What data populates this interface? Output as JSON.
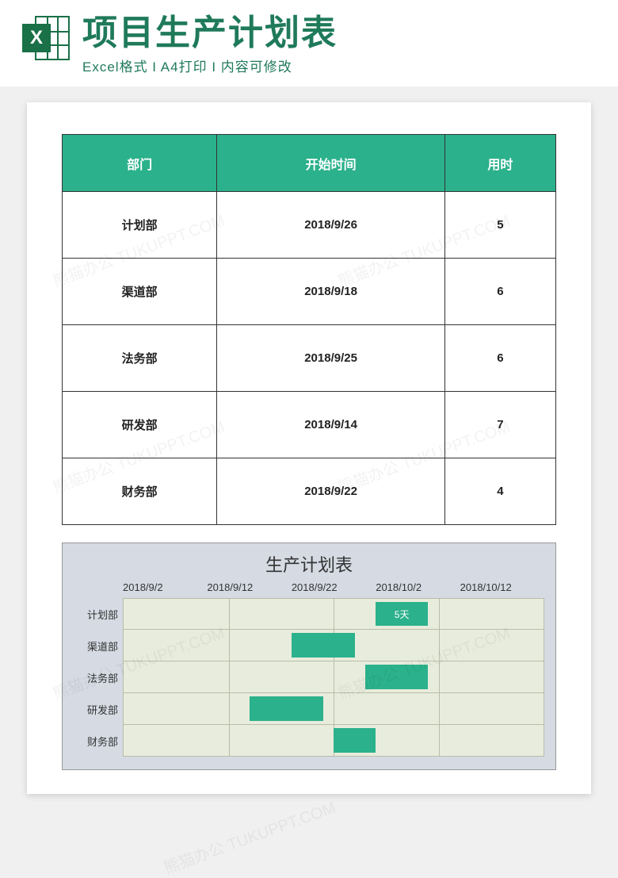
{
  "header": {
    "title": "项目生产计划表",
    "subtitle_parts": [
      "Excel格式",
      "A4打印",
      "内容可修改"
    ],
    "separator": " I ",
    "icon_letter": "X",
    "title_color": "#1f7a5a",
    "icon_color": "#1a7047"
  },
  "table": {
    "header_bg": "#2bb18b",
    "header_fg": "#ffffff",
    "border_color": "#333333",
    "columns": [
      "部门",
      "开始时间",
      "用时"
    ],
    "rows": [
      [
        "计划部",
        "2018/9/26",
        "5"
      ],
      [
        "渠道部",
        "2018/9/18",
        "6"
      ],
      [
        "法务部",
        "2018/9/25",
        "6"
      ],
      [
        "研发部",
        "2018/9/14",
        "7"
      ],
      [
        "财务部",
        "2018/9/22",
        "4"
      ]
    ]
  },
  "chart": {
    "type": "gantt",
    "title": "生产计划表",
    "background_color": "#d5dae3",
    "plot_bg": "#e8ecdc",
    "grid_color": "#b8bca8",
    "bar_color": "#2bb18b",
    "bar_label_color": "#ffffff",
    "title_fontsize": 22,
    "axis_fontsize": 13,
    "x_min": "2018/9/2",
    "x_max": "2018/10/12",
    "x_ticks": [
      "2018/9/2",
      "2018/9/12",
      "2018/9/22",
      "2018/10/2",
      "2018/10/12"
    ],
    "x_range_days": 40,
    "tasks": [
      {
        "name": "计划部",
        "start_offset_days": 24,
        "duration_days": 5,
        "label": "5天"
      },
      {
        "name": "渠道部",
        "start_offset_days": 16,
        "duration_days": 6,
        "label": ""
      },
      {
        "name": "法务部",
        "start_offset_days": 23,
        "duration_days": 6,
        "label": ""
      },
      {
        "name": "研发部",
        "start_offset_days": 12,
        "duration_days": 7,
        "label": ""
      },
      {
        "name": "财务部",
        "start_offset_days": 20,
        "duration_days": 4,
        "label": ""
      }
    ]
  },
  "watermark_text": "熊猫办公 TUKUPPT.COM"
}
